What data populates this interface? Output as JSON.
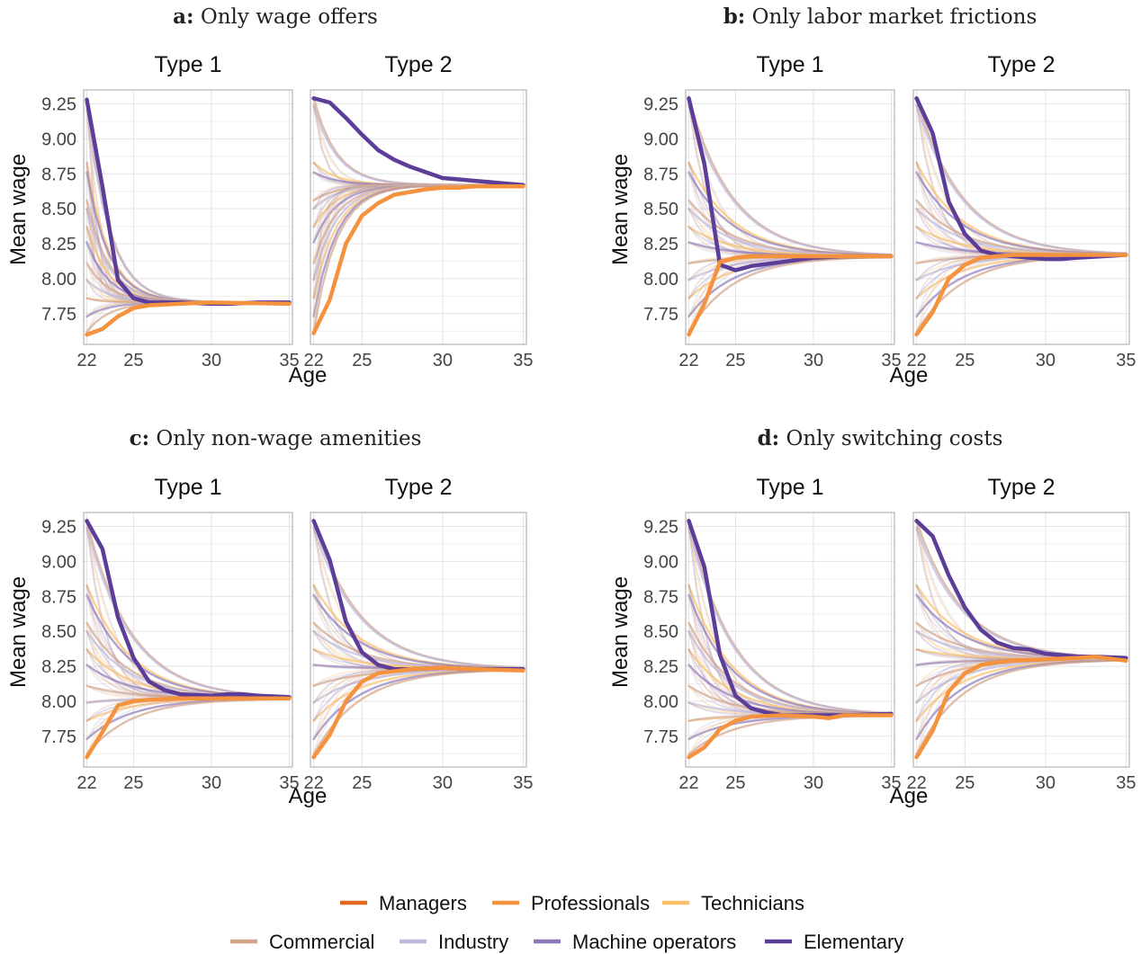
{
  "legend": {
    "items": [
      {
        "label": "Managers",
        "color": "#e06820"
      },
      {
        "label": "Professionals",
        "color": "#f5923e"
      },
      {
        "label": "Technicians",
        "color": "#fbbf6a"
      },
      {
        "label": "Commercial",
        "color": "#d2a388"
      },
      {
        "label": "Industry",
        "color": "#bcb8dc"
      },
      {
        "label": "Machine operators",
        "color": "#8b79ba"
      },
      {
        "label": "Elementary",
        "color": "#5c3d98"
      }
    ]
  },
  "axis": {
    "xlabel": "Age",
    "ylabel": "Mean wage",
    "xticks": [
      22,
      25,
      30,
      35
    ],
    "yticks": [
      "9.25",
      "9.00",
      "8.75",
      "8.50",
      "8.25",
      "8.00",
      "7.75"
    ]
  },
  "chart_data": [
    {
      "type": "line",
      "panel_letter": "a:",
      "title": "Only wage offers",
      "facets": [
        "Type 1",
        "Type 2"
      ],
      "xlim": [
        21.8,
        35.2
      ],
      "ylim": [
        7.53,
        9.35
      ],
      "steady_state": {
        "Type 1": 7.83,
        "Type 2": 8.67
      },
      "highlighted": [
        {
          "name": "Elementary",
          "facet": "Type 1",
          "values": [
            [
              22,
              9.28
            ],
            [
              23,
              8.66
            ],
            [
              24,
              7.99
            ],
            [
              25,
              7.86
            ],
            [
              26,
              7.83
            ],
            [
              28,
              7.83
            ],
            [
              30,
              7.82
            ],
            [
              31,
              7.82
            ],
            [
              33,
              7.83
            ],
            [
              35,
              7.83
            ]
          ]
        },
        {
          "name": "Professionals",
          "facet": "Type 1",
          "values": [
            [
              22,
              7.6
            ],
            [
              23,
              7.64
            ],
            [
              24,
              7.73
            ],
            [
              25,
              7.79
            ],
            [
              26,
              7.81
            ],
            [
              28,
              7.82
            ],
            [
              30,
              7.83
            ],
            [
              35,
              7.82
            ]
          ]
        },
        {
          "name": "Elementary",
          "facet": "Type 2",
          "values": [
            [
              22,
              9.29
            ],
            [
              23,
              9.26
            ],
            [
              24,
              9.15
            ],
            [
              25,
              9.03
            ],
            [
              26,
              8.92
            ],
            [
              27,
              8.85
            ],
            [
              28,
              8.8
            ],
            [
              29,
              8.76
            ],
            [
              30,
              8.72
            ],
            [
              31,
              8.71
            ],
            [
              32,
              8.7
            ],
            [
              33,
              8.69
            ],
            [
              34,
              8.68
            ],
            [
              35,
              8.67
            ]
          ]
        },
        {
          "name": "Professionals",
          "facet": "Type 2",
          "values": [
            [
              22,
              7.61
            ],
            [
              23,
              7.85
            ],
            [
              24,
              8.25
            ],
            [
              25,
              8.45
            ],
            [
              26,
              8.54
            ],
            [
              27,
              8.6
            ],
            [
              28,
              8.62
            ],
            [
              29,
              8.64
            ],
            [
              30,
              8.65
            ],
            [
              31,
              8.65
            ],
            [
              32,
              8.66
            ],
            [
              33,
              8.66
            ],
            [
              35,
              8.66
            ]
          ]
        }
      ]
    },
    {
      "type": "line",
      "panel_letter": "b:",
      "title": "Only labor market frictions",
      "facets": [
        "Type 1",
        "Type 2"
      ],
      "xlim": [
        21.8,
        35.2
      ],
      "ylim": [
        7.53,
        9.35
      ],
      "steady_state": {
        "Type 1": 8.16,
        "Type 2": 8.17
      },
      "highlighted": [
        {
          "name": "Elementary",
          "facet": "Type 1",
          "values": [
            [
              22,
              9.29
            ],
            [
              23,
              8.82
            ],
            [
              24,
              8.1
            ],
            [
              25,
              8.06
            ],
            [
              26,
              8.09
            ],
            [
              28,
              8.12
            ],
            [
              30,
              8.15
            ],
            [
              32,
              8.16
            ],
            [
              35,
              8.16
            ]
          ]
        },
        {
          "name": "Professionals",
          "facet": "Type 1",
          "values": [
            [
              22,
              7.6
            ],
            [
              23,
              7.82
            ],
            [
              24,
              8.12
            ],
            [
              25,
              8.15
            ],
            [
              26,
              8.16
            ],
            [
              28,
              8.16
            ],
            [
              30,
              8.16
            ],
            [
              35,
              8.16
            ]
          ]
        },
        {
          "name": "Elementary",
          "facet": "Type 2",
          "values": [
            [
              22,
              9.29
            ],
            [
              23,
              9.04
            ],
            [
              24,
              8.55
            ],
            [
              25,
              8.32
            ],
            [
              26,
              8.2
            ],
            [
              27,
              8.17
            ],
            [
              28,
              8.16
            ],
            [
              30,
              8.14
            ],
            [
              31,
              8.14
            ],
            [
              32,
              8.15
            ],
            [
              35,
              8.17
            ]
          ]
        },
        {
          "name": "Professionals",
          "facet": "Type 2",
          "values": [
            [
              22,
              7.6
            ],
            [
              23,
              7.76
            ],
            [
              24,
              8.0
            ],
            [
              25,
              8.1
            ],
            [
              26,
              8.15
            ],
            [
              28,
              8.17
            ],
            [
              30,
              8.17
            ],
            [
              35,
              8.17
            ]
          ]
        }
      ]
    },
    {
      "type": "line",
      "panel_letter": "c:",
      "title": "Only non-wage amenities",
      "facets": [
        "Type 1",
        "Type 2"
      ],
      "xlim": [
        21.8,
        35.2
      ],
      "ylim": [
        7.53,
        9.35
      ],
      "steady_state": {
        "Type 1": 8.02,
        "Type 2": 8.23
      },
      "highlighted": [
        {
          "name": "Elementary",
          "facet": "Type 1",
          "values": [
            [
              22,
              9.29
            ],
            [
              23,
              9.09
            ],
            [
              24,
              8.6
            ],
            [
              25,
              8.31
            ],
            [
              26,
              8.14
            ],
            [
              27,
              8.08
            ],
            [
              28,
              8.05
            ],
            [
              30,
              8.04
            ],
            [
              31,
              8.05
            ],
            [
              32,
              8.05
            ],
            [
              33,
              8.04
            ],
            [
              35,
              8.03
            ]
          ]
        },
        {
          "name": "Professionals",
          "facet": "Type 1",
          "values": [
            [
              22,
              7.6
            ],
            [
              23,
              7.78
            ],
            [
              24,
              7.97
            ],
            [
              25,
              8.0
            ],
            [
              26,
              8.01
            ],
            [
              28,
              8.02
            ],
            [
              30,
              8.02
            ],
            [
              35,
              8.02
            ]
          ]
        },
        {
          "name": "Elementary",
          "facet": "Type 2",
          "values": [
            [
              22,
              9.29
            ],
            [
              23,
              9.01
            ],
            [
              24,
              8.57
            ],
            [
              25,
              8.35
            ],
            [
              26,
              8.26
            ],
            [
              27,
              8.23
            ],
            [
              28,
              8.23
            ],
            [
              30,
              8.24
            ],
            [
              32,
              8.23
            ],
            [
              35,
              8.23
            ]
          ]
        },
        {
          "name": "Professionals",
          "facet": "Type 2",
          "values": [
            [
              22,
              7.6
            ],
            [
              23,
              7.76
            ],
            [
              24,
              8.0
            ],
            [
              25,
              8.14
            ],
            [
              26,
              8.2
            ],
            [
              28,
              8.23
            ],
            [
              30,
              8.24
            ],
            [
              32,
              8.23
            ],
            [
              35,
              8.22
            ]
          ]
        }
      ]
    },
    {
      "type": "line",
      "panel_letter": "d:",
      "title": "Only switching costs",
      "facets": [
        "Type 1",
        "Type 2"
      ],
      "xlim": [
        21.8,
        35.2
      ],
      "ylim": [
        7.53,
        9.35
      ],
      "steady_state": {
        "Type 1": 7.9,
        "Type 2": 8.3
      },
      "highlighted": [
        {
          "name": "Elementary",
          "facet": "Type 1",
          "values": [
            [
              22,
              9.29
            ],
            [
              23,
              8.96
            ],
            [
              24,
              8.33
            ],
            [
              25,
              8.04
            ],
            [
              26,
              7.95
            ],
            [
              27,
              7.92
            ],
            [
              28,
              7.9
            ],
            [
              30,
              7.9
            ],
            [
              32,
              7.9
            ],
            [
              35,
              7.91
            ]
          ]
        },
        {
          "name": "Professionals",
          "facet": "Type 1",
          "values": [
            [
              22,
              7.6
            ],
            [
              23,
              7.67
            ],
            [
              24,
              7.8
            ],
            [
              25,
              7.86
            ],
            [
              26,
              7.89
            ],
            [
              28,
              7.9
            ],
            [
              30,
              7.89
            ],
            [
              31,
              7.88
            ],
            [
              32,
              7.9
            ],
            [
              35,
              7.9
            ]
          ]
        },
        {
          "name": "Elementary",
          "facet": "Type 2",
          "values": [
            [
              22,
              9.29
            ],
            [
              23,
              9.18
            ],
            [
              24,
              8.9
            ],
            [
              25,
              8.67
            ],
            [
              26,
              8.51
            ],
            [
              27,
              8.42
            ],
            [
              28,
              8.38
            ],
            [
              29,
              8.37
            ],
            [
              30,
              8.34
            ],
            [
              31,
              8.33
            ],
            [
              32,
              8.32
            ],
            [
              33,
              8.32
            ],
            [
              35,
              8.31
            ]
          ]
        },
        {
          "name": "Professionals",
          "facet": "Type 2",
          "values": [
            [
              22,
              7.6
            ],
            [
              23,
              7.79
            ],
            [
              24,
              8.07
            ],
            [
              25,
              8.2
            ],
            [
              26,
              8.26
            ],
            [
              27,
              8.28
            ],
            [
              28,
              8.29
            ],
            [
              30,
              8.3
            ],
            [
              32,
              8.31
            ],
            [
              33,
              8.32
            ],
            [
              35,
              8.29
            ]
          ]
        }
      ]
    }
  ]
}
